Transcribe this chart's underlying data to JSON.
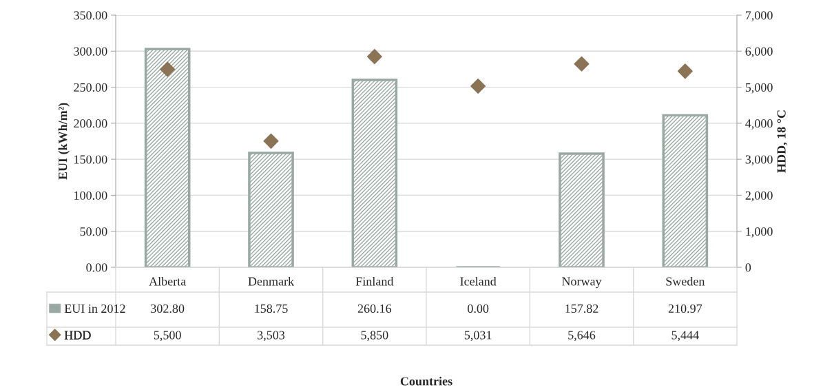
{
  "chart_data": {
    "type": "bar",
    "annotations": [
      "Countries"
    ],
    "ylabel": "EUI (kWh/m²)",
    "y2label": "HDD, 18 °C",
    "categories": [
      "Alberta",
      "Denmark",
      "Finland",
      "Iceland",
      "Norway",
      "Sweden"
    ],
    "series": [
      {
        "name": "EUI in 2012",
        "color": "#9aa8a2",
        "values": [
          302.8,
          158.75,
          260.16,
          0.0,
          157.82,
          210.97
        ],
        "value_labels": [
          "302.80",
          "158.75",
          "260.16",
          "0.00",
          "157.82",
          "210.97"
        ]
      },
      {
        "name": "HDD",
        "type": "scatter",
        "axis": "y2",
        "color": "#8b7355",
        "marker": "diamond",
        "values": [
          5500,
          3503,
          5850,
          5031,
          5646,
          5444
        ],
        "value_labels": [
          "5,500",
          "3,503",
          "5,850",
          "5,031",
          "5,646",
          "5,444"
        ]
      }
    ],
    "ylim": [
      0,
      350
    ],
    "yticks": [
      {
        "value": 0,
        "label": "0.00"
      },
      {
        "value": 50,
        "label": "50.00"
      },
      {
        "value": 100,
        "label": "100.00"
      },
      {
        "value": 150,
        "label": "150.00"
      },
      {
        "value": 200,
        "label": "200.00"
      },
      {
        "value": 250,
        "label": "250.00"
      },
      {
        "value": 300,
        "label": "300.00"
      },
      {
        "value": 350,
        "label": "350.00"
      }
    ],
    "y2lim": [
      0,
      7000
    ],
    "y2ticks": [
      0,
      {
        "value": 1000,
        "label": "1,000"
      },
      {
        "value": 2000,
        "label": "2,000"
      },
      {
        "value": 3000,
        "label": "3,000"
      },
      {
        "value": 4000,
        "label": "4,000"
      },
      {
        "value": 5000,
        "label": "5,000"
      },
      {
        "value": 6000,
        "label": "6,000"
      },
      {
        "value": 7000,
        "label": "7,000"
      }
    ],
    "grid": "y",
    "legend": "bottom left"
  }
}
